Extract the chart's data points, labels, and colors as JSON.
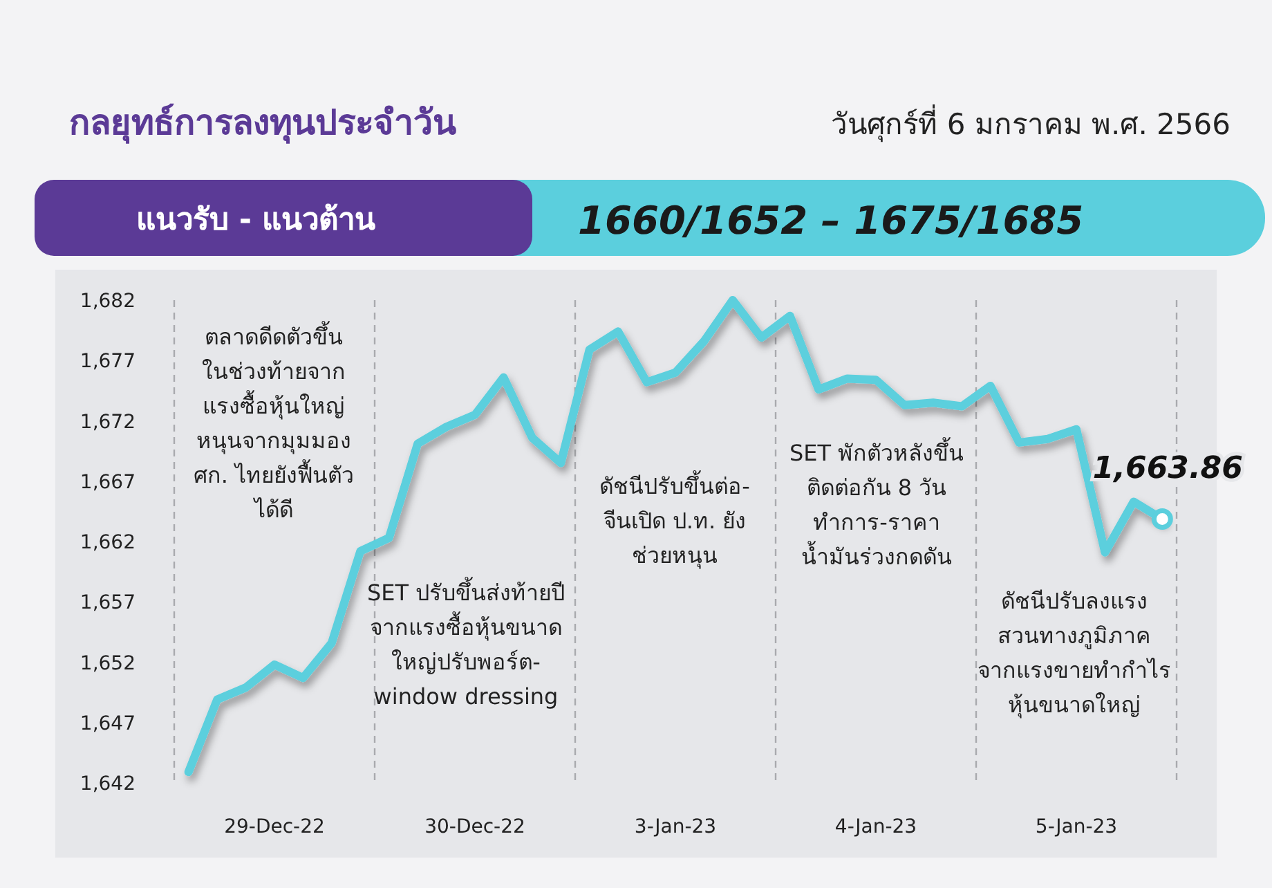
{
  "chart_data": {
    "type": "line",
    "title": "กลยุทธ์การลงทุนประจำวัน",
    "subtitle": "วันศุกร์ที่ 6 มกราคม พ.ศ. 2566",
    "annotations": [
      "แนวรับ - แนวต้าน",
      "1660/1652 – 1675/1685",
      "ตลาดดีดตัวขึ้น\nในช่วงท้ายจาก\nแรงซื้อหุ้นใหญ่\nหนุนจากมุมมอง\nศก. ไทยยังฟื้นตัว\nได้ดี",
      "SET ปรับขึ้นส่งท้ายปี\nจากแรงซื้อหุ้นขนาด\nใหญ่ปรับพอร์ต-\nwindow dressing",
      "ดัชนีปรับขึ้นต่อ-\nจีนเปิด ป.ท. ยัง\nช่วยหนุน",
      "SET พักตัวหลังขึ้น\nติดต่อกัน 8 วัน\nทำการ-ราคา\nน้ำมันร่วงกดดัน",
      "ดัชนีปรับลงแรง\nสวนทางภูมิภาค\nจากแรงขายทำกำไร\nหุ้นขนาดใหญ่"
    ],
    "categories": [
      null,
      null,
      null,
      "29-Dec-22",
      null,
      null,
      null,
      null,
      null,
      null,
      "30-Dec-22",
      null,
      null,
      null,
      null,
      null,
      null,
      "3-Jan-23",
      null,
      null,
      null,
      null,
      null,
      null,
      "4-Jan-23",
      null,
      null,
      null,
      null,
      null,
      null,
      "5-Jan-23",
      null,
      null,
      null
    ],
    "series": [
      {
        "color": "#5bcfdd",
        "values": [
          1642.9,
          1648.9,
          1649.9,
          1651.8,
          1650.7,
          1653.6,
          1661.2,
          1662.3,
          1670.1,
          1671.5,
          1672.5,
          1675.6,
          1670.6,
          1668.5,
          1677.9,
          1679.4,
          1675.2,
          1676.0,
          1678.6,
          1682.0,
          1678.9,
          1680.7,
          1674.6,
          1675.5,
          1675.4,
          1673.3,
          1673.5,
          1673.2,
          1674.9,
          1670.2,
          1670.5,
          1671.3,
          1661.1,
          1665.3,
          1663.86
        ],
        "value_labels": [
          null,
          null,
          null,
          null,
          null,
          null,
          null,
          null,
          null,
          null,
          null,
          null,
          null,
          null,
          null,
          null,
          null,
          null,
          null,
          null,
          null,
          null,
          null,
          null,
          null,
          null,
          null,
          null,
          null,
          null,
          null,
          null,
          null,
          null,
          "1,663.86"
        ]
      }
    ],
    "ylim": [
      1642,
      1682
    ],
    "yticks": [
      {
        "value": 1642,
        "label": "1,642"
      },
      {
        "value": 1647,
        "label": "1,647"
      },
      {
        "value": 1652,
        "label": "1,652"
      },
      {
        "value": 1657,
        "label": "1,657"
      },
      {
        "value": 1662,
        "label": "1,662"
      },
      {
        "value": 1667,
        "label": "1,667"
      },
      {
        "value": 1672,
        "label": "1,672"
      },
      {
        "value": 1677,
        "label": "1,677"
      },
      {
        "value": 1682,
        "label": "1,682"
      }
    ]
  }
}
